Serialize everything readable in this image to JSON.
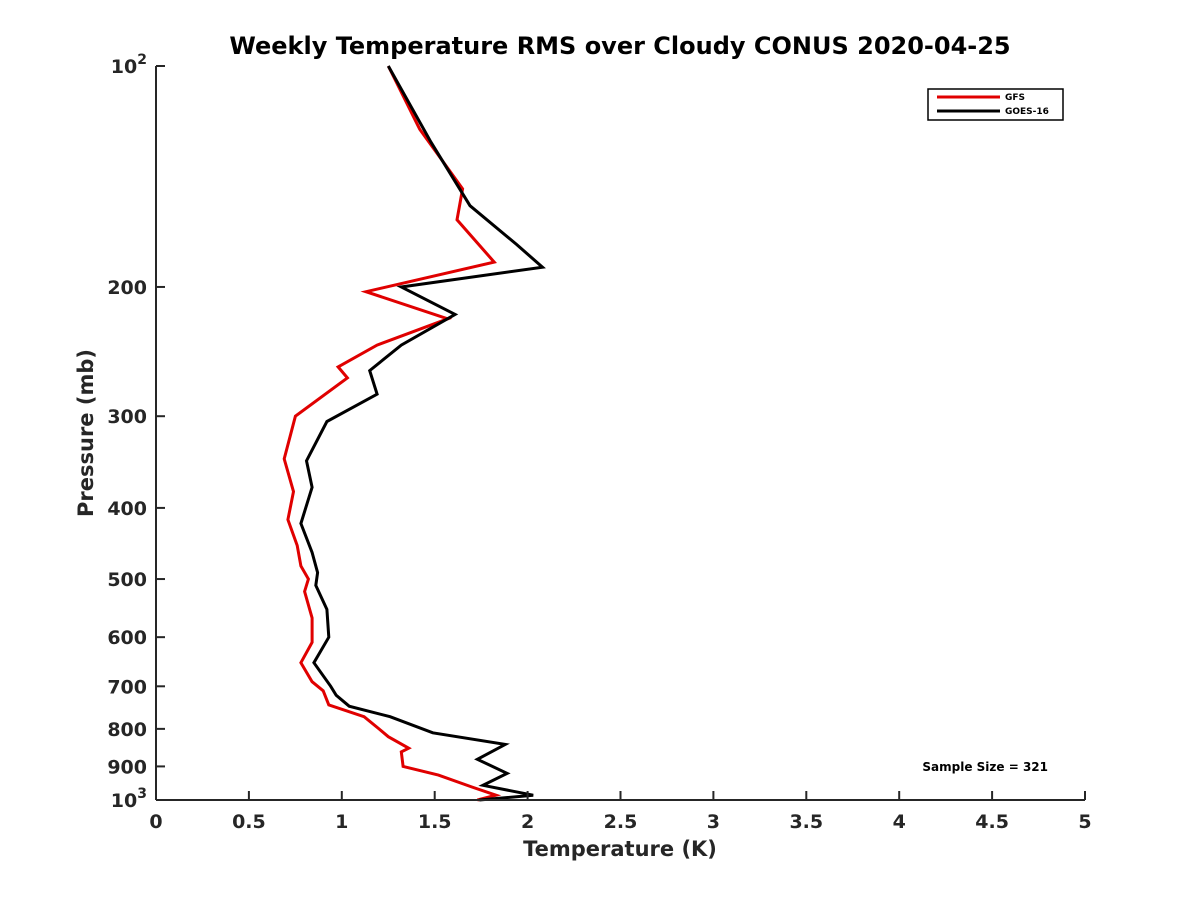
{
  "chart_data": {
    "type": "line",
    "title": "Weekly Temperature RMS over Cloudy CONUS 2020-04-25",
    "xlabel": "Temperature (K)",
    "ylabel": "Pressure (mb)",
    "xlim": [
      0,
      5
    ],
    "ylim": [
      100,
      1000
    ],
    "y_scale": "log",
    "y_reversed": true,
    "grid": false,
    "x_ticks": [
      "0",
      "0.5",
      "1",
      "1.5",
      "2",
      "2.5",
      "3",
      "3.5",
      "4",
      "4.5",
      "5"
    ],
    "y_ticks": [
      {
        "value": 100,
        "base": "10",
        "exp": "2"
      },
      {
        "value": 200,
        "label": "200"
      },
      {
        "value": 300,
        "label": "300"
      },
      {
        "value": 400,
        "label": "400"
      },
      {
        "value": 500,
        "label": "500"
      },
      {
        "value": 600,
        "label": "600"
      },
      {
        "value": 700,
        "label": "700"
      },
      {
        "value": 800,
        "label": "800"
      },
      {
        "value": 900,
        "label": "900"
      },
      {
        "value": 1000,
        "base": "10",
        "exp": "3"
      }
    ],
    "legend_position": "top-right",
    "annotation": "Sample Size = 321",
    "series": [
      {
        "name": "GFS",
        "color": "#e00000",
        "points": [
          [
            1.25,
            100
          ],
          [
            1.42,
            122
          ],
          [
            1.65,
            147
          ],
          [
            1.62,
            162
          ],
          [
            1.82,
            185
          ],
          [
            1.13,
            203
          ],
          [
            1.57,
            221
          ],
          [
            1.19,
            240
          ],
          [
            0.98,
            257
          ],
          [
            1.03,
            266
          ],
          [
            0.75,
            300
          ],
          [
            0.69,
            343
          ],
          [
            0.74,
            380
          ],
          [
            0.71,
            415
          ],
          [
            0.76,
            450
          ],
          [
            0.78,
            480
          ],
          [
            0.82,
            500
          ],
          [
            0.8,
            520
          ],
          [
            0.84,
            565
          ],
          [
            0.84,
            610
          ],
          [
            0.78,
            650
          ],
          [
            0.84,
            690
          ],
          [
            0.9,
            710
          ],
          [
            0.93,
            742
          ],
          [
            1.12,
            770
          ],
          [
            1.2,
            800
          ],
          [
            1.25,
            820
          ],
          [
            1.36,
            850
          ],
          [
            1.32,
            860
          ],
          [
            1.33,
            900
          ],
          [
            1.52,
            925
          ],
          [
            1.7,
            960
          ],
          [
            1.83,
            985
          ],
          [
            1.73,
            1000
          ]
        ]
      },
      {
        "name": "GOES-16",
        "color": "#000000",
        "points": [
          [
            1.25,
            100
          ],
          [
            1.48,
            127
          ],
          [
            1.69,
            155
          ],
          [
            1.94,
            175
          ],
          [
            2.08,
            188
          ],
          [
            1.32,
            200
          ],
          [
            1.61,
            218
          ],
          [
            1.32,
            240
          ],
          [
            1.15,
            260
          ],
          [
            1.19,
            280
          ],
          [
            0.92,
            305
          ],
          [
            0.81,
            345
          ],
          [
            0.84,
            375
          ],
          [
            0.78,
            420
          ],
          [
            0.84,
            460
          ],
          [
            0.87,
            490
          ],
          [
            0.86,
            510
          ],
          [
            0.92,
            550
          ],
          [
            0.93,
            600
          ],
          [
            0.85,
            650
          ],
          [
            0.94,
            700
          ],
          [
            0.97,
            720
          ],
          [
            1.04,
            745
          ],
          [
            1.26,
            770
          ],
          [
            1.49,
            810
          ],
          [
            1.88,
            840
          ],
          [
            1.73,
            880
          ],
          [
            1.89,
            920
          ],
          [
            1.76,
            955
          ],
          [
            2.03,
            985
          ],
          [
            1.74,
            1000
          ]
        ]
      }
    ]
  }
}
